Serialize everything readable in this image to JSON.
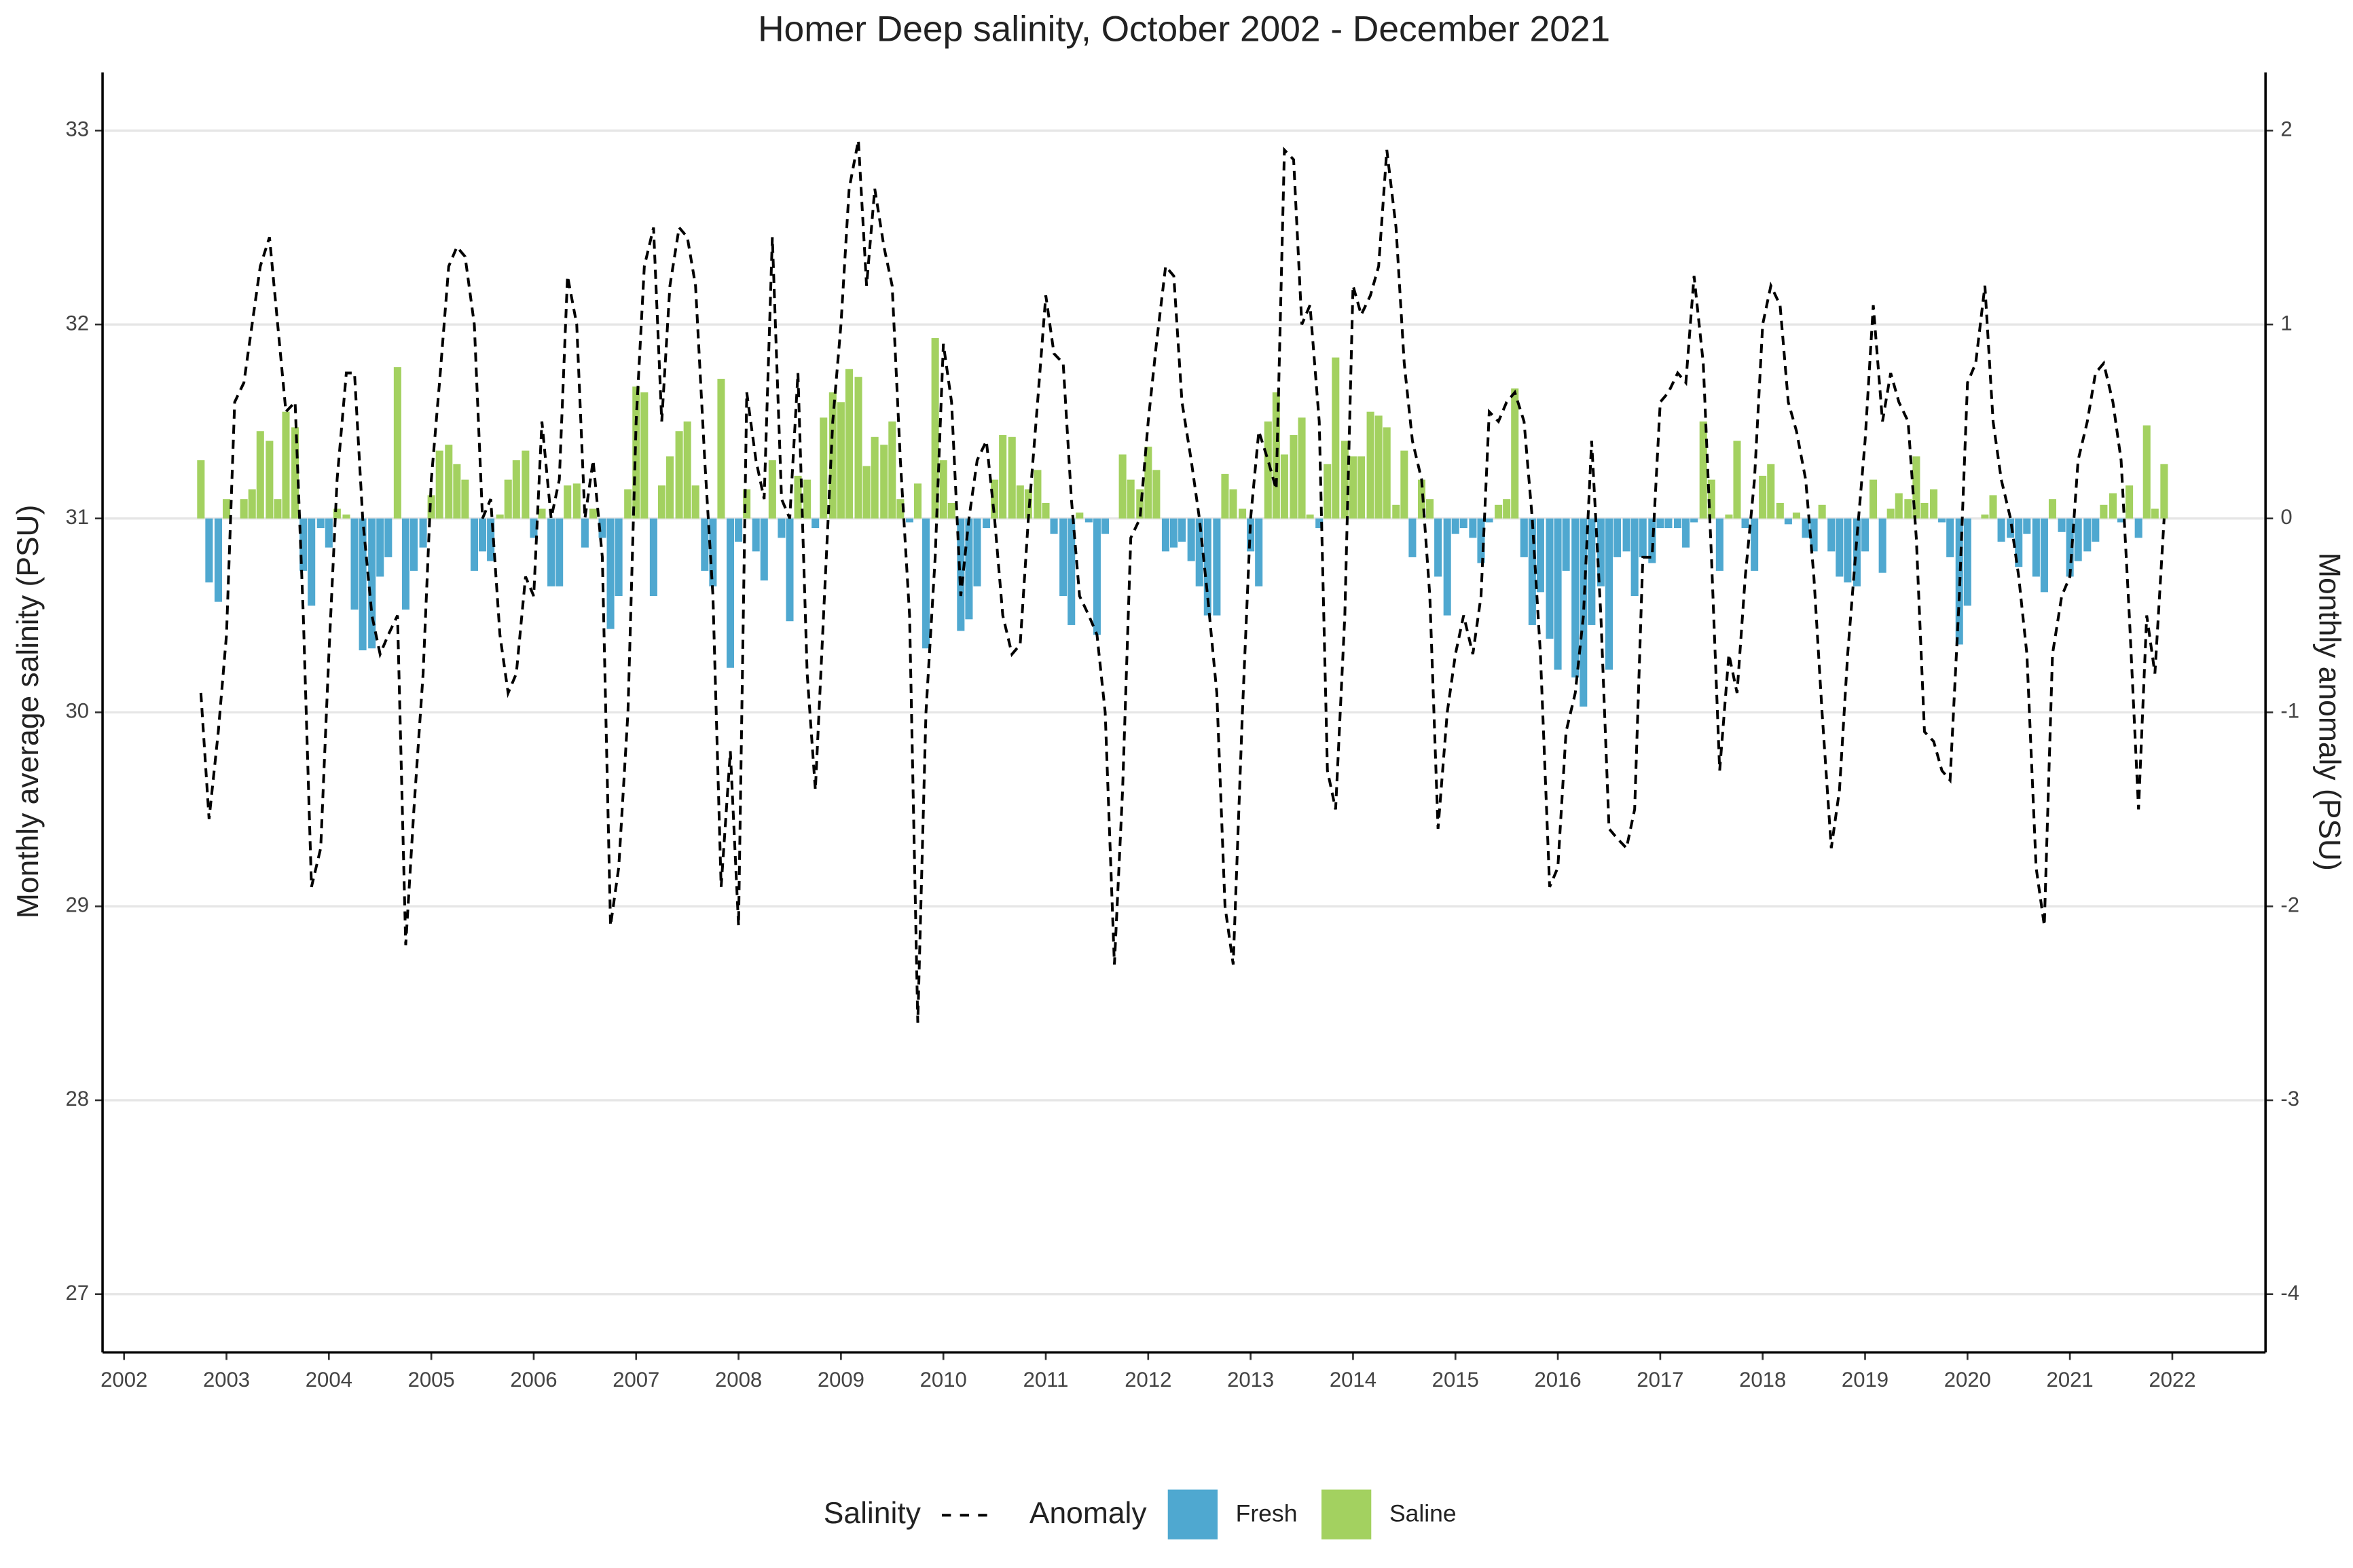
{
  "chart_data": {
    "type": "combo",
    "title": "Homer Deep salinity, October 2002 - December 2021",
    "y_label": "Monthly average salinity (PSU)",
    "y2_label": "Monthly anomaly (PSU)",
    "xlim": [
      2001.79,
      2022.91
    ],
    "xticks": [
      2002,
      2003,
      2004,
      2005,
      2006,
      2007,
      2008,
      2009,
      2010,
      2011,
      2012,
      2013,
      2014,
      2015,
      2016,
      2017,
      2018,
      2019,
      2020,
      2021,
      2022
    ],
    "ylim": [
      26.7,
      33.3
    ],
    "yticks": [
      27,
      28,
      29,
      30,
      31,
      32,
      33
    ],
    "y2lim": [
      -4.3,
      2.3
    ],
    "y2ticks": [
      -4,
      -3,
      -2,
      -1,
      0,
      1,
      2
    ],
    "grid": true,
    "legend_position": "bottom",
    "x": [
      2002.75,
      2002.83,
      2002.92,
      2003,
      2003.08,
      2003.17,
      2003.25,
      2003.33,
      2003.42,
      2003.5,
      2003.58,
      2003.67,
      2003.75,
      2003.83,
      2003.92,
      2004,
      2004.08,
      2004.17,
      2004.25,
      2004.33,
      2004.42,
      2004.5,
      2004.58,
      2004.67,
      2004.75,
      2004.83,
      2004.92,
      2005,
      2005.08,
      2005.17,
      2005.25,
      2005.33,
      2005.42,
      2005.5,
      2005.58,
      2005.67,
      2005.75,
      2005.83,
      2005.92,
      2006,
      2006.08,
      2006.17,
      2006.25,
      2006.33,
      2006.42,
      2006.5,
      2006.58,
      2006.67,
      2006.75,
      2006.83,
      2006.92,
      2007,
      2007.08,
      2007.17,
      2007.25,
      2007.33,
      2007.42,
      2007.5,
      2007.58,
      2007.67,
      2007.75,
      2007.83,
      2007.92,
      2008,
      2008.08,
      2008.17,
      2008.25,
      2008.33,
      2008.42,
      2008.5,
      2008.58,
      2008.67,
      2008.75,
      2008.83,
      2008.92,
      2009,
      2009.08,
      2009.17,
      2009.25,
      2009.33,
      2009.42,
      2009.5,
      2009.58,
      2009.67,
      2009.75,
      2009.83,
      2009.92,
      2010,
      2010.08,
      2010.17,
      2010.25,
      2010.33,
      2010.42,
      2010.5,
      2010.58,
      2010.67,
      2010.75,
      2010.83,
      2010.92,
      2011,
      2011.08,
      2011.17,
      2011.25,
      2011.33,
      2011.42,
      2011.5,
      2011.58,
      2011.67,
      2011.75,
      2011.83,
      2011.92,
      2012,
      2012.08,
      2012.17,
      2012.25,
      2012.33,
      2012.42,
      2012.5,
      2012.58,
      2012.67,
      2012.75,
      2012.83,
      2012.92,
      2013,
      2013.08,
      2013.17,
      2013.25,
      2013.33,
      2013.42,
      2013.5,
      2013.58,
      2013.67,
      2013.75,
      2013.83,
      2013.92,
      2014,
      2014.08,
      2014.17,
      2014.25,
      2014.33,
      2014.42,
      2014.5,
      2014.58,
      2014.67,
      2014.75,
      2014.83,
      2014.92,
      2015,
      2015.08,
      2015.17,
      2015.25,
      2015.33,
      2015.42,
      2015.5,
      2015.58,
      2015.67,
      2015.75,
      2015.83,
      2015.92,
      2016,
      2016.08,
      2016.17,
      2016.25,
      2016.33,
      2016.42,
      2016.5,
      2016.58,
      2016.67,
      2016.75,
      2016.83,
      2016.92,
      2017,
      2017.08,
      2017.17,
      2017.25,
      2017.33,
      2017.42,
      2017.5,
      2017.58,
      2017.67,
      2017.75,
      2017.83,
      2017.92,
      2018,
      2018.08,
      2018.17,
      2018.25,
      2018.33,
      2018.42,
      2018.5,
      2018.58,
      2018.67,
      2018.75,
      2018.83,
      2018.92,
      2019,
      2019.08,
      2019.17,
      2019.25,
      2019.33,
      2019.42,
      2019.5,
      2019.58,
      2019.67,
      2019.75,
      2019.83,
      2019.92,
      2020,
      2020.08,
      2020.17,
      2020.25,
      2020.33,
      2020.42,
      2020.5,
      2020.58,
      2020.67,
      2020.75,
      2020.83,
      2020.92,
      2021,
      2021.08,
      2021.17,
      2021.25,
      2021.33,
      2021.42,
      2021.5,
      2021.58,
      2021.67,
      2021.75,
      2021.83,
      2021.92
    ],
    "series": [
      {
        "name": "Salinity",
        "type": "line",
        "color": "#000000",
        "dashed": true,
        "values": [
          30.1,
          29.45,
          29.9,
          30.4,
          31.6,
          31.7,
          32.0,
          32.3,
          32.45,
          32.0,
          31.55,
          31.6,
          30.5,
          29.1,
          29.3,
          30.3,
          31.2,
          31.75,
          31.75,
          31.0,
          30.5,
          30.3,
          30.4,
          30.5,
          28.8,
          29.5,
          30.2,
          31.2,
          31.7,
          32.3,
          32.4,
          32.35,
          32.0,
          31.0,
          31.1,
          30.4,
          30.1,
          30.2,
          30.7,
          30.6,
          31.5,
          31.0,
          31.2,
          32.25,
          32.0,
          31.0,
          31.3,
          30.8,
          28.9,
          29.2,
          30.0,
          31.5,
          32.3,
          32.5,
          31.5,
          32.2,
          32.5,
          32.45,
          32.2,
          31.3,
          30.6,
          29.1,
          29.8,
          28.9,
          31.65,
          31.3,
          31.1,
          32.45,
          31.1,
          31.0,
          31.75,
          30.2,
          29.6,
          30.5,
          31.5,
          32.0,
          32.7,
          32.95,
          32.2,
          32.7,
          32.4,
          32.2,
          31.3,
          30.5,
          28.4,
          30.0,
          30.8,
          31.9,
          31.6,
          30.6,
          31.0,
          31.3,
          31.4,
          31.0,
          30.5,
          30.3,
          30.35,
          31.0,
          31.6,
          32.15,
          31.85,
          31.8,
          31.1,
          30.6,
          30.5,
          30.4,
          30.0,
          28.7,
          29.6,
          30.9,
          31.0,
          31.5,
          31.9,
          32.3,
          32.25,
          31.6,
          31.3,
          31.0,
          30.6,
          30.1,
          29.0,
          28.7,
          30.0,
          31.0,
          31.45,
          31.3,
          31.15,
          32.9,
          32.85,
          32.0,
          32.1,
          31.5,
          29.7,
          29.5,
          30.5,
          32.2,
          32.05,
          32.15,
          32.3,
          32.9,
          32.5,
          31.8,
          31.4,
          31.2,
          30.6,
          29.4,
          30.0,
          30.3,
          30.5,
          30.3,
          30.6,
          31.55,
          31.5,
          31.6,
          31.65,
          31.5,
          31.0,
          30.3,
          29.1,
          29.2,
          29.9,
          30.1,
          30.5,
          31.4,
          30.5,
          29.4,
          29.35,
          29.3,
          29.5,
          30.8,
          30.8,
          31.6,
          31.65,
          31.75,
          31.7,
          32.25,
          31.8,
          30.8,
          29.7,
          30.3,
          30.1,
          30.7,
          31.2,
          32.0,
          32.2,
          32.1,
          31.6,
          31.45,
          31.2,
          30.7,
          30.0,
          29.3,
          29.6,
          30.3,
          30.9,
          31.4,
          32.1,
          31.5,
          31.75,
          31.6,
          31.5,
          30.9,
          29.9,
          29.85,
          29.7,
          29.65,
          30.6,
          31.7,
          31.8,
          32.2,
          31.5,
          31.2,
          31.0,
          30.7,
          30.3,
          29.2,
          28.9,
          30.3,
          30.6,
          30.7,
          31.3,
          31.5,
          31.75,
          31.8,
          31.6,
          31.3,
          30.5,
          29.5,
          30.5,
          30.2,
          31.0
        ]
      },
      {
        "name": "Anomaly",
        "type": "bar",
        "axis": "y2",
        "classes": [
          {
            "name": "Fresh",
            "color": "#4fa8d0"
          },
          {
            "name": "Saline",
            "color": "#a3d160"
          }
        ],
        "values": [
          0.3,
          -0.33,
          -0.43,
          0.1,
          0,
          0.1,
          0.15,
          0.45,
          0.4,
          0.1,
          0.55,
          0.47,
          -0.27,
          -0.45,
          -0.05,
          -0.15,
          0.05,
          0.02,
          -0.47,
          -0.68,
          -0.67,
          -0.3,
          -0.2,
          0.78,
          -0.47,
          -0.27,
          -0.15,
          0.12,
          0.35,
          0.38,
          0.28,
          0.2,
          -0.27,
          -0.17,
          -0.22,
          0.02,
          0.2,
          0.3,
          0.35,
          -0.1,
          0.05,
          -0.35,
          -0.35,
          0.17,
          0.18,
          -0.15,
          0.05,
          -0.1,
          -0.57,
          -0.4,
          0.15,
          0.68,
          0.65,
          -0.4,
          0.17,
          0.32,
          0.45,
          0.5,
          0.17,
          -0.27,
          -0.35,
          0.72,
          -0.77,
          -0.12,
          0.15,
          -0.17,
          -0.32,
          0.3,
          -0.1,
          -0.53,
          0.22,
          0.2,
          -0.05,
          0.52,
          0.65,
          0.6,
          0.77,
          0.73,
          0.27,
          0.42,
          0.38,
          0.5,
          0.1,
          -0.02,
          0.18,
          -0.67,
          0.93,
          0.3,
          0.08,
          -0.58,
          -0.52,
          -0.35,
          -0.05,
          0.2,
          0.43,
          0.42,
          0.17,
          0.15,
          0.25,
          0.08,
          -0.08,
          -0.4,
          -0.55,
          0.03,
          -0.02,
          -0.6,
          -0.08,
          0,
          0.33,
          0.2,
          0.15,
          0.37,
          0.25,
          -0.17,
          -0.15,
          -0.12,
          -0.22,
          -0.35,
          -0.5,
          -0.5,
          0.23,
          0.15,
          0.05,
          -0.17,
          -0.35,
          0.5,
          0.65,
          0.33,
          0.43,
          0.52,
          0.02,
          -0.05,
          0.28,
          0.83,
          0.4,
          0.32,
          0.32,
          0.55,
          0.53,
          0.47,
          0.07,
          0.35,
          -0.2,
          0.2,
          0.1,
          -0.3,
          -0.5,
          -0.08,
          -0.05,
          -0.1,
          -0.23,
          -0.02,
          0.07,
          0.1,
          0.67,
          -0.2,
          -0.55,
          -0.38,
          -0.62,
          -0.78,
          -0.27,
          -0.82,
          -0.97,
          -0.55,
          -0.35,
          -0.78,
          -0.2,
          -0.17,
          -0.4,
          -0.2,
          -0.23,
          -0.05,
          -0.05,
          -0.05,
          -0.15,
          -0.02,
          0.5,
          0.2,
          -0.27,
          0.02,
          0.4,
          -0.05,
          -0.27,
          0.22,
          0.28,
          0.08,
          -0.03,
          0.03,
          -0.1,
          -0.17,
          0.07,
          -0.17,
          -0.3,
          -0.33,
          -0.35,
          -0.17,
          0.2,
          -0.28,
          0.05,
          0.13,
          0.1,
          0.32,
          0.08,
          0.15,
          -0.02,
          -0.2,
          -0.65,
          -0.45,
          0,
          0.02,
          0.12,
          -0.12,
          -0.1,
          -0.25,
          -0.08,
          -0.3,
          -0.38,
          0.1,
          -0.07,
          -0.3,
          -0.22,
          -0.17,
          -0.12,
          0.07,
          0.13,
          -0.02,
          0.17,
          -0.1,
          0.48,
          0.05,
          0.28
        ]
      }
    ]
  }
}
